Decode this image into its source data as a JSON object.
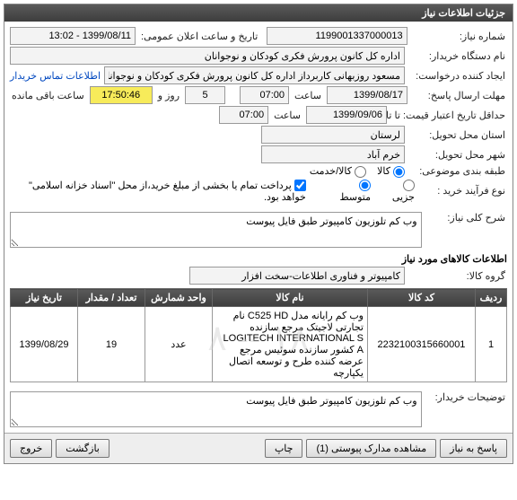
{
  "panel_title": "جزئیات اطلاعات نیاز",
  "labels": {
    "need_no": "شماره نیاز:",
    "buyer_org": "نام دستگاه خریدار:",
    "creator": "ایجاد کننده درخواست:",
    "reply_deadline": "مهلت ارسال پاسخ:",
    "valid_until_lbl": "حداقل تاریخ اعتبار قیمت: تا تاریخ:",
    "province": "استان محل تحویل:",
    "city": "شهر محل تحویل:",
    "subject_class": "طبقه بندی موضوعی:",
    "process_type": "نوع فرآیند خرید :",
    "announce_dt": "تاریخ و ساعت اعلان عمومی:",
    "contact_link": "اطلاعات تماس خریدار",
    "hour": "ساعت",
    "day_and": "روز  و",
    "remaining": "ساعت باقی مانده",
    "goods": "کالا",
    "service": "کالا/خدمت",
    "small": "جزیی",
    "medium": "متوسط",
    "payment_note": "پرداخت تمام یا بخشی از مبلغ خرید،از محل \"اسناد خزانه اسلامی\" خواهد بود.",
    "need_desc": "شرح کلی نیاز:",
    "items_section": "اطلاعات کالاهای مورد نیاز",
    "goods_group": "گروه کالا:",
    "table": {
      "row": "ردیف",
      "code": "کد کالا",
      "name": "نام کالا",
      "unit": "واحد شمارش",
      "qty": "تعداد / مقدار",
      "need_date": "تاریخ نیاز"
    },
    "buyer_notes": "توضیحات خریدار:"
  },
  "values": {
    "need_no": "1199001337000013",
    "announce_dt": "1399/08/11 - 13:02",
    "buyer_org": "اداره کل کانون پرورش فکری کودکان و نوجوانان",
    "creator": "مسعود روزبهانی کاربرداز اداره کل کانون پرورش فکری کودکان و نوجوانان",
    "reply_date": "1399/08/17",
    "reply_time": "07:00",
    "days_left": "5",
    "hours_left": "17:50:46",
    "valid_date": "1399/09/06",
    "valid_time": "07:00",
    "province": "لرستان",
    "city": "خرم آباد",
    "need_desc": "وب کم تلوزیون کامپیوتر طبق فایل پیوست",
    "goods_group": "کامپیوتر و فناوری اطلاعات-سخت افزار",
    "buyer_notes": "وب کم تلوزیون کامپیوتر طبق فایل پیوست"
  },
  "table_rows": [
    {
      "idx": "1",
      "code": "2232100315660001",
      "name": "وب کم رایانه مدل C525 HD نام تجارتی لاجیتک مرجع سازنده LOGITECH INTERNATIONAL S A کشور سازنده سوئیس مرجع عرضه کننده طرح و توسعه اتصال یکپارچه",
      "unit": "عدد",
      "qty": "19",
      "date": "1399/08/29"
    }
  ],
  "buttons": {
    "reply": "پاسخ به نیاز",
    "attachments": "مشاهده مدارک پیوستی (1)",
    "print": "چاپ",
    "back": "بازگشت",
    "exit": "خروج"
  },
  "watermark": "۱۸ -- ۸"
}
